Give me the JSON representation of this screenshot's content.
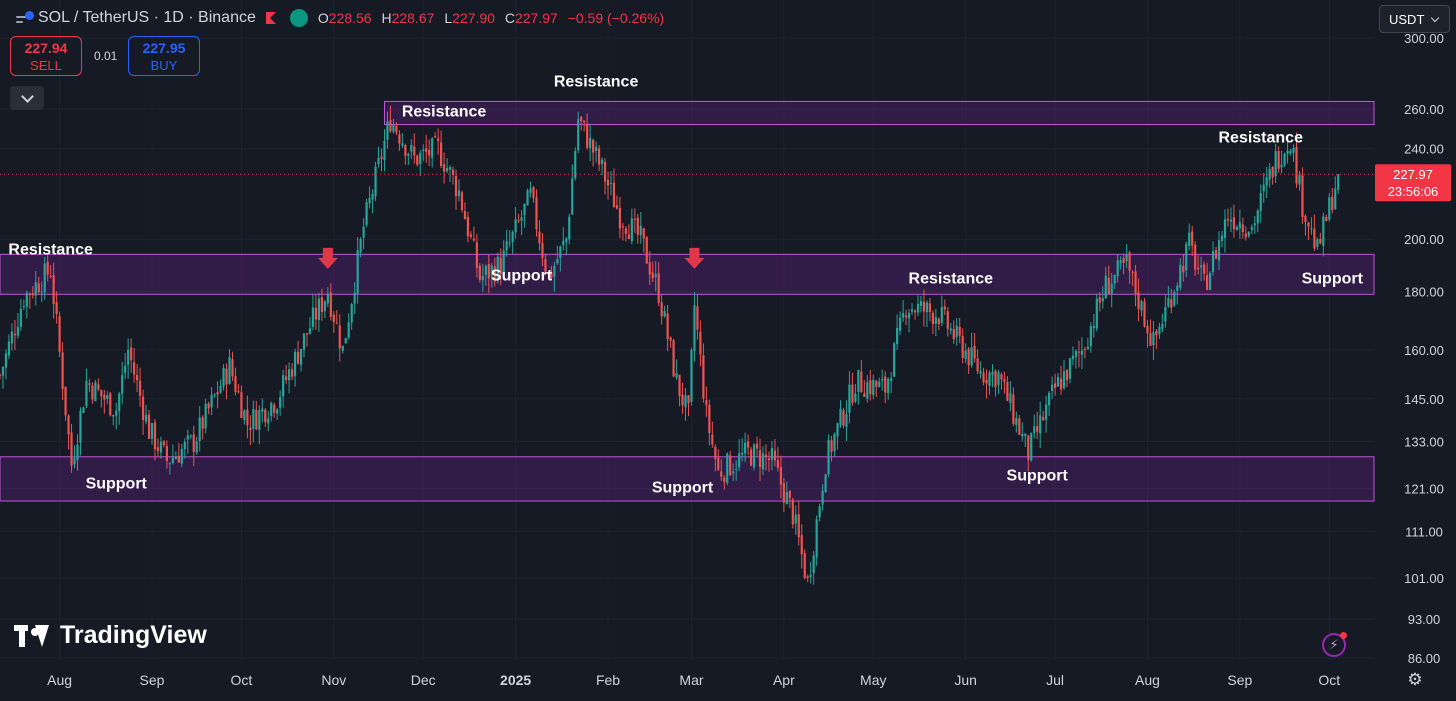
{
  "header": {
    "title": "SOL / TetherUS · 1D · Binance",
    "open_label": "O",
    "open": "228.56",
    "high_label": "H",
    "high": "228.67",
    "low_label": "L",
    "low": "227.90",
    "close_label": "C",
    "close": "227.97",
    "change": "−0.59 (−0.26%)"
  },
  "trade": {
    "sell_price": "227.94",
    "sell_label": "SELL",
    "spread": "0.01",
    "buy_price": "227.95",
    "buy_label": "BUY"
  },
  "currency_selector": "USDT",
  "branding": "TradingView",
  "icons": [
    "symbol-icon",
    "flag-icon",
    "live-status-icon",
    "chevron-down-icon",
    "lightning-icon",
    "settings-gear-icon",
    "tradingview-logo-icon"
  ],
  "colors": {
    "background": "#161a25",
    "up": "#26a69a",
    "down": "#ef5350",
    "zone_fill": "#7b1fa2",
    "zone_border": "#c056d8",
    "arrow": "#e0384a",
    "last_price": "#f23645"
  },
  "chart_data": {
    "type": "candlestick",
    "y_scale": "log",
    "ylim": [
      86,
      300
    ],
    "y_ticks": [
      300,
      260,
      240,
      200,
      180,
      160,
      145,
      133,
      121,
      111,
      101,
      93,
      86
    ],
    "y_tick_labels": [
      "300.00",
      "260.00",
      "240.00",
      "200.00",
      "180.00",
      "160.00",
      "145.00",
      "133.00",
      "121.00",
      "111.00",
      "101.00",
      "93.00",
      "86.00"
    ],
    "x_range": [
      "2024-07-12",
      "2025-10-16"
    ],
    "x_ticks": [
      {
        "date": "2024-08-01",
        "label": "Aug"
      },
      {
        "date": "2024-09-01",
        "label": "Sep"
      },
      {
        "date": "2024-10-01",
        "label": "Oct"
      },
      {
        "date": "2024-11-01",
        "label": "Nov"
      },
      {
        "date": "2024-12-01",
        "label": "Dec"
      },
      {
        "date": "2025-01-01",
        "label": "2025"
      },
      {
        "date": "2025-02-01",
        "label": "Feb"
      },
      {
        "date": "2025-03-01",
        "label": "Mar"
      },
      {
        "date": "2025-04-01",
        "label": "Apr"
      },
      {
        "date": "2025-05-01",
        "label": "May"
      },
      {
        "date": "2025-06-01",
        "label": "Jun"
      },
      {
        "date": "2025-07-01",
        "label": "Jul"
      },
      {
        "date": "2025-08-01",
        "label": "Aug"
      },
      {
        "date": "2025-09-01",
        "label": "Sep"
      },
      {
        "date": "2025-10-01",
        "label": "Oct"
      }
    ],
    "last_price": "227.97",
    "countdown": "23:56:06",
    "price_path": [
      [
        "2024-07-12",
        152
      ],
      [
        "2024-07-20",
        178
      ],
      [
        "2024-07-29",
        188
      ],
      [
        "2024-08-05",
        127
      ],
      [
        "2024-08-10",
        150
      ],
      [
        "2024-08-20",
        142
      ],
      [
        "2024-08-24",
        160
      ],
      [
        "2024-08-31",
        136
      ],
      [
        "2024-09-06",
        128
      ],
      [
        "2024-09-15",
        133
      ],
      [
        "2024-09-27",
        155
      ],
      [
        "2024-10-03",
        138
      ],
      [
        "2024-10-13",
        145
      ],
      [
        "2024-10-25",
        170
      ],
      [
        "2024-10-30",
        180
      ],
      [
        "2024-11-04",
        160
      ],
      [
        "2024-11-11",
        205
      ],
      [
        "2024-11-20",
        255
      ],
      [
        "2024-11-28",
        235
      ],
      [
        "2024-12-06",
        240
      ],
      [
        "2024-12-13",
        220
      ],
      [
        "2024-12-20",
        185
      ],
      [
        "2024-12-27",
        190
      ],
      [
        "2025-01-06",
        218
      ],
      [
        "2025-01-12",
        185
      ],
      [
        "2025-01-18",
        200
      ],
      [
        "2025-01-22",
        255
      ],
      [
        "2025-01-30",
        230
      ],
      [
        "2025-02-05",
        210
      ],
      [
        "2025-02-12",
        200
      ],
      [
        "2025-02-18",
        180
      ],
      [
        "2025-02-24",
        150
      ],
      [
        "2025-02-28",
        140
      ],
      [
        "2025-03-02",
        175
      ],
      [
        "2025-03-06",
        140
      ],
      [
        "2025-03-10",
        125
      ],
      [
        "2025-03-20",
        130
      ],
      [
        "2025-03-28",
        128
      ],
      [
        "2025-04-04",
        115
      ],
      [
        "2025-04-09",
        100
      ],
      [
        "2025-04-15",
        128
      ],
      [
        "2025-04-25",
        150
      ],
      [
        "2025-05-05",
        148
      ],
      [
        "2025-05-12",
        175
      ],
      [
        "2025-05-23",
        172
      ],
      [
        "2025-06-06",
        153
      ],
      [
        "2025-06-12",
        152
      ],
      [
        "2025-06-22",
        130
      ],
      [
        "2025-07-01",
        148
      ],
      [
        "2025-07-10",
        160
      ],
      [
        "2025-07-18",
        182
      ],
      [
        "2025-07-25",
        190
      ],
      [
        "2025-08-03",
        162
      ],
      [
        "2025-08-15",
        198
      ],
      [
        "2025-08-20",
        182
      ],
      [
        "2025-08-28",
        210
      ],
      [
        "2025-09-05",
        205
      ],
      [
        "2025-09-13",
        235
      ],
      [
        "2025-09-18",
        245
      ],
      [
        "2025-09-22",
        215
      ],
      [
        "2025-09-27",
        195
      ],
      [
        "2025-10-04",
        227.97
      ]
    ],
    "zones": [
      {
        "low": 252,
        "high": 264,
        "from": "2024-11-18",
        "to": "2025-10-16"
      },
      {
        "low": 179,
        "high": 194,
        "from": "2024-07-12",
        "to": "2025-10-16"
      },
      {
        "low": 118,
        "high": 129,
        "from": "2024-07-12",
        "to": "2025-10-16"
      }
    ],
    "annotations": [
      {
        "text": "Resistance",
        "date": "2024-07-29",
        "value": 194
      },
      {
        "text": "Support",
        "date": "2024-08-20",
        "value": 121
      },
      {
        "text": "Resistance",
        "date": "2024-12-08",
        "value": 256
      },
      {
        "text": "Support",
        "date": "2025-01-03",
        "value": 184
      },
      {
        "text": "Resistance",
        "date": "2025-01-28",
        "value": 272
      },
      {
        "text": "Support",
        "date": "2025-02-26",
        "value": 120
      },
      {
        "text": "Resistance",
        "date": "2025-05-27",
        "value": 183
      },
      {
        "text": "Support",
        "date": "2025-06-25",
        "value": 123
      },
      {
        "text": "Resistance",
        "date": "2025-09-08",
        "value": 243
      },
      {
        "text": "Support",
        "date": "2025-10-02",
        "value": 183
      }
    ],
    "arrows": [
      {
        "date": "2024-10-30",
        "value": 188
      },
      {
        "date": "2025-03-02",
        "value": 188
      }
    ]
  }
}
